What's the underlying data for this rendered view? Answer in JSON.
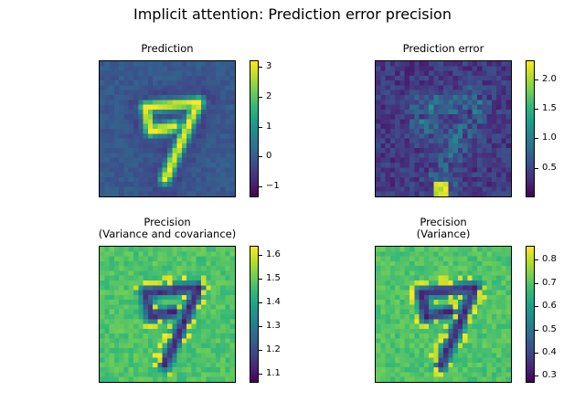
{
  "title": "Implicit attention: Prediction error precision",
  "chart_data": [
    {
      "type": "heatmap",
      "title": "Prediction",
      "grid": false,
      "colormap": "viridis",
      "pattern": "digit",
      "colorbar": {
        "min": -1.35,
        "max": 3.2,
        "ticks": [
          "3",
          "2",
          "1",
          "0",
          "−1"
        ],
        "tick_values": [
          3,
          2,
          1,
          0,
          -1
        ]
      }
    },
    {
      "type": "heatmap",
      "title": "Prediction error",
      "grid": false,
      "colormap": "viridis",
      "pattern": "error",
      "colorbar": {
        "min": 0.0,
        "max": 2.32,
        "ticks": [
          "2.0",
          "1.5",
          "1.0",
          "0.5"
        ],
        "tick_values": [
          2.0,
          1.5,
          1.0,
          0.5
        ]
      }
    },
    {
      "type": "heatmap",
      "title": "Precision\n(Variance and covariance)",
      "grid": false,
      "colormap": "viridis",
      "pattern": "precision",
      "colorbar": {
        "min": 1.06,
        "max": 1.64,
        "ticks": [
          "1.6",
          "1.5",
          "1.4",
          "1.3",
          "1.2",
          "1.1"
        ],
        "tick_values": [
          1.6,
          1.5,
          1.4,
          1.3,
          1.2,
          1.1
        ]
      }
    },
    {
      "type": "heatmap",
      "title": "Precision\n(Variance)",
      "grid": false,
      "colormap": "viridis",
      "pattern": "precision",
      "colorbar": {
        "min": 0.27,
        "max": 0.86,
        "ticks": [
          "0.8",
          "0.7",
          "0.6",
          "0.5",
          "0.4",
          "0.3"
        ],
        "tick_values": [
          0.8,
          0.7,
          0.6,
          0.5,
          0.4,
          0.3
        ]
      }
    }
  ]
}
